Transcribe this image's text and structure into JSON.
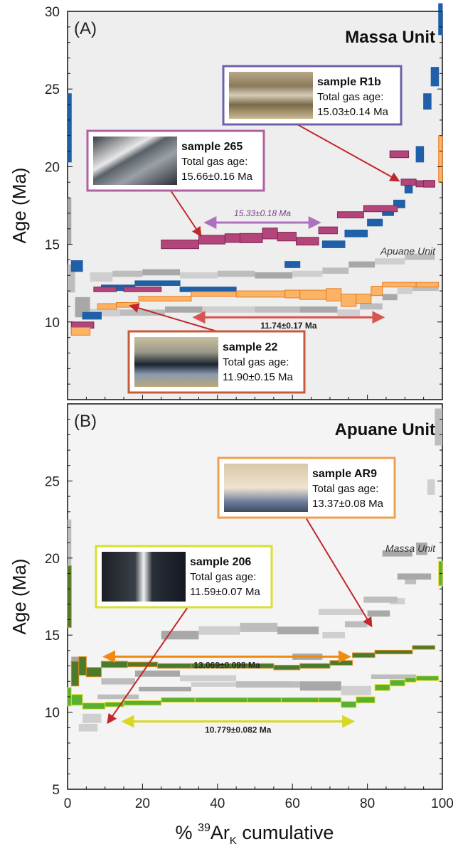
{
  "x_axis": {
    "label_prefix": "% ",
    "label_sup": "39",
    "label_main": "Ar",
    "label_sub": "K",
    "label_suffix": " cumulative",
    "range": [
      0,
      100
    ],
    "ticks": [
      "0",
      "20",
      "40",
      "60",
      "80",
      "100"
    ]
  },
  "chart_data": [
    {
      "type": "step-spectrum",
      "panel_label": "(A)",
      "title": "Massa Unit",
      "ylabel": "Age (Ma)",
      "ylim": [
        5,
        30
      ],
      "yticks": [
        "10",
        "15",
        "20",
        "25",
        "30"
      ],
      "background_label": "Apuane Unit",
      "series": [
        {
          "name": "R1b",
          "color": "#1f5fa6",
          "fill": "#2060a8",
          "steps": [
            {
              "x": [
                0,
                1
              ],
              "age": 22.5,
              "err": 2.2
            },
            {
              "x": [
                1,
                4
              ],
              "age": 13.6,
              "err": 0.35
            },
            {
              "x": [
                4,
                9
              ],
              "age": 10.4,
              "err": 0.22
            },
            {
              "x": [
                9,
                18
              ],
              "age": 12.2,
              "err": 0.18
            },
            {
              "x": [
                18,
                30
              ],
              "age": 12.5,
              "err": 0.15
            },
            {
              "x": [
                30,
                45
              ],
              "age": 12.1,
              "err": 0.15
            },
            {
              "x": [
                58,
                62
              ],
              "age": 13.7,
              "err": 0.2
            },
            {
              "x": [
                68,
                74
              ],
              "age": 15.0,
              "err": 0.22
            },
            {
              "x": [
                74,
                80
              ],
              "age": 15.7,
              "err": 0.22
            },
            {
              "x": [
                80,
                84
              ],
              "age": 16.4,
              "err": 0.22
            },
            {
              "x": [
                84,
                87
              ],
              "age": 17.1,
              "err": 0.25
            },
            {
              "x": [
                87,
                90
              ],
              "age": 17.6,
              "err": 0.25
            },
            {
              "x": [
                90,
                92
              ],
              "age": 18.7,
              "err": 0.4
            },
            {
              "x": [
                93,
                95
              ],
              "age": 20.8,
              "err": 0.5
            },
            {
              "x": [
                95,
                97
              ],
              "age": 24.2,
              "err": 0.5
            },
            {
              "x": [
                97,
                99
              ],
              "age": 25.8,
              "err": 0.6
            },
            {
              "x": [
                99,
                100
              ],
              "age": 29.5,
              "err": 1.0
            }
          ]
        },
        {
          "name": "265",
          "color": "#7a2a56",
          "fill": "#b3457a",
          "steps": [
            {
              "x": [
                1,
                7
              ],
              "age": 9.8,
              "err": 0.2
            },
            {
              "x": [
                7,
                13
              ],
              "age": 12.1,
              "err": 0.15
            },
            {
              "x": [
                15,
                25
              ],
              "age": 12.1,
              "err": 0.15
            },
            {
              "x": [
                25,
                35
              ],
              "age": 15.0,
              "err": 0.28
            },
            {
              "x": [
                35,
                42
              ],
              "age": 15.3,
              "err": 0.28
            },
            {
              "x": [
                42,
                46
              ],
              "age": 15.4,
              "err": 0.28
            },
            {
              "x": [
                46,
                52
              ],
              "age": 15.4,
              "err": 0.3
            },
            {
              "x": [
                52,
                56
              ],
              "age": 15.7,
              "err": 0.35
            },
            {
              "x": [
                56,
                61
              ],
              "age": 15.5,
              "err": 0.28
            },
            {
              "x": [
                61,
                67
              ],
              "age": 15.2,
              "err": 0.25
            },
            {
              "x": [
                67,
                72
              ],
              "age": 15.9,
              "err": 0.22
            },
            {
              "x": [
                72,
                79
              ],
              "age": 16.9,
              "err": 0.2
            },
            {
              "x": [
                79,
                88
              ],
              "age": 17.3,
              "err": 0.2
            },
            {
              "x": [
                89,
                93
              ],
              "age": 19.0,
              "err": 0.2
            },
            {
              "x": [
                93,
                95
              ],
              "age": 18.9,
              "err": 0.2
            },
            {
              "x": [
                95,
                98
              ],
              "age": 18.9,
              "err": 0.22
            },
            {
              "x": [
                86,
                91
              ],
              "age": 20.8,
              "err": 0.22
            }
          ]
        },
        {
          "name": "22",
          "color": "#e87a20",
          "fill": "#fbb465",
          "steps": [
            {
              "x": [
                1,
                6
              ],
              "age": 9.4,
              "err": 0.25
            },
            {
              "x": [
                8,
                13
              ],
              "age": 11.0,
              "err": 0.18
            },
            {
              "x": [
                13,
                19
              ],
              "age": 11.1,
              "err": 0.15
            },
            {
              "x": [
                19,
                33
              ],
              "age": 11.5,
              "err": 0.15
            },
            {
              "x": [
                33,
                45
              ],
              "age": 11.8,
              "err": 0.15
            },
            {
              "x": [
                45,
                58
              ],
              "age": 11.8,
              "err": 0.2
            },
            {
              "x": [
                58,
                62
              ],
              "age": 11.8,
              "err": 0.25
            },
            {
              "x": [
                62,
                69
              ],
              "age": 11.75,
              "err": 0.3
            },
            {
              "x": [
                69,
                73
              ],
              "age": 11.75,
              "err": 0.4
            },
            {
              "x": [
                73,
                77
              ],
              "age": 11.4,
              "err": 0.4
            },
            {
              "x": [
                77,
                81
              ],
              "age": 11.5,
              "err": 0.3
            },
            {
              "x": [
                81,
                84
              ],
              "age": 12.0,
              "err": 0.3
            },
            {
              "x": [
                84,
                93
              ],
              "age": 12.4,
              "err": 0.15
            },
            {
              "x": [
                93,
                99
              ],
              "age": 12.4,
              "err": 0.15
            },
            {
              "x": [
                99,
                100
              ],
              "age": 20.5,
              "err": 1.5
            }
          ]
        }
      ],
      "plateaus": [
        {
          "label": "15.33±0.18 Ma",
          "x": [
            37,
            67
          ],
          "age": 16.4,
          "color": "#b070c0",
          "italic": true
        },
        {
          "label": "11.74±0.17 Ma",
          "x": [
            34,
            84
          ],
          "age": 10.3,
          "color": "#d9534f",
          "italic": false
        }
      ],
      "callouts": [
        {
          "title": "sample R1b",
          "line1": "Total gas age:",
          "line2": "15.03±0.14 Ma",
          "border": "#7060a8",
          "photo": "striped-tan"
        },
        {
          "title": "sample 265",
          "line1": "Total gas age:",
          "line2": "15.66±0.16 Ma",
          "border": "#b060a0",
          "photo": "banded-grey"
        },
        {
          "title": "sample 22",
          "line1": "Total gas age:",
          "line2": "11.90±0.15 Ma",
          "border": "#c85a3a",
          "photo": "layered-dark"
        }
      ]
    },
    {
      "type": "step-spectrum",
      "panel_label": "(B)",
      "title": "Apuane Unit",
      "ylabel": "Age (Ma)",
      "ylim": [
        5,
        30
      ],
      "yticks": [
        "5",
        "10",
        "15",
        "20",
        "25"
      ],
      "background_label": "Massa Unit",
      "series": [
        {
          "name": "AR9",
          "color": "#e08a20",
          "fill": "#4a7a2a",
          "steps": [
            {
              "x": [
                0,
                1
              ],
              "age": 17.5,
              "err": 2.0
            },
            {
              "x": [
                1,
                3
              ],
              "age": 12.5,
              "err": 0.8
            },
            {
              "x": [
                3,
                5
              ],
              "age": 13.0,
              "err": 0.6
            },
            {
              "x": [
                5,
                9
              ],
              "age": 12.6,
              "err": 0.3
            },
            {
              "x": [
                9,
                16
              ],
              "age": 13.1,
              "err": 0.2
            },
            {
              "x": [
                16,
                24
              ],
              "age": 13.1,
              "err": 0.15
            },
            {
              "x": [
                24,
                33
              ],
              "age": 13.0,
              "err": 0.15
            },
            {
              "x": [
                33,
                44
              ],
              "age": 13.0,
              "err": 0.15
            },
            {
              "x": [
                44,
                55
              ],
              "age": 13.0,
              "err": 0.15
            },
            {
              "x": [
                55,
                62
              ],
              "age": 12.9,
              "err": 0.15
            },
            {
              "x": [
                62,
                70
              ],
              "age": 13.0,
              "err": 0.15
            },
            {
              "x": [
                70,
                76
              ],
              "age": 13.2,
              "err": 0.15
            },
            {
              "x": [
                76,
                82
              ],
              "age": 13.7,
              "err": 0.15
            },
            {
              "x": [
                82,
                92
              ],
              "age": 13.9,
              "err": 0.12
            },
            {
              "x": [
                92,
                98
              ],
              "age": 14.2,
              "err": 0.12
            }
          ]
        },
        {
          "name": "206",
          "color": "#e8e030",
          "fill": "#58b030",
          "steps": [
            {
              "x": [
                0,
                1
              ],
              "age": 11.0,
              "err": 0.6
            },
            {
              "x": [
                1,
                4
              ],
              "age": 10.8,
              "err": 0.35
            },
            {
              "x": [
                4,
                10
              ],
              "age": 10.4,
              "err": 0.2
            },
            {
              "x": [
                10,
                15
              ],
              "age": 10.5,
              "err": 0.15
            },
            {
              "x": [
                15,
                25
              ],
              "age": 10.6,
              "err": 0.15
            },
            {
              "x": [
                25,
                34
              ],
              "age": 10.8,
              "err": 0.15
            },
            {
              "x": [
                34,
                48
              ],
              "age": 10.8,
              "err": 0.15
            },
            {
              "x": [
                48,
                57
              ],
              "age": 10.8,
              "err": 0.15
            },
            {
              "x": [
                57,
                67
              ],
              "age": 10.8,
              "err": 0.15
            },
            {
              "x": [
                67,
                73
              ],
              "age": 10.8,
              "err": 0.15
            },
            {
              "x": [
                73,
                77
              ],
              "age": 10.5,
              "err": 0.2
            },
            {
              "x": [
                77,
                82
              ],
              "age": 10.8,
              "err": 0.2
            },
            {
              "x": [
                82,
                86
              ],
              "age": 11.6,
              "err": 0.2
            },
            {
              "x": [
                86,
                90
              ],
              "age": 11.9,
              "err": 0.2
            },
            {
              "x": [
                90,
                93
              ],
              "age": 12.1,
              "err": 0.15
            },
            {
              "x": [
                93,
                99
              ],
              "age": 12.2,
              "err": 0.15
            },
            {
              "x": [
                99,
                100
              ],
              "age": 19.0,
              "err": 0.8
            }
          ]
        }
      ],
      "plateaus": [
        {
          "label": "13.069±0.099 Ma",
          "x": [
            10,
            75
          ],
          "age": 13.6,
          "color": "#f08a10",
          "italic": false
        },
        {
          "label": "10.779±0.082 Ma",
          "x": [
            15,
            76
          ],
          "age": 9.4,
          "color": "#d8d820",
          "italic": false
        }
      ],
      "callouts": [
        {
          "title": "sample AR9",
          "line1": "Total gas age:",
          "line2": "13.37±0.08 Ma",
          "border": "#f0a050",
          "photo": "layered-cream"
        },
        {
          "title": "sample 206",
          "line1": "Total gas age:",
          "line2": "11.59±0.07 Ma",
          "border": "#d8e030",
          "photo": "folded-dark"
        }
      ]
    }
  ]
}
